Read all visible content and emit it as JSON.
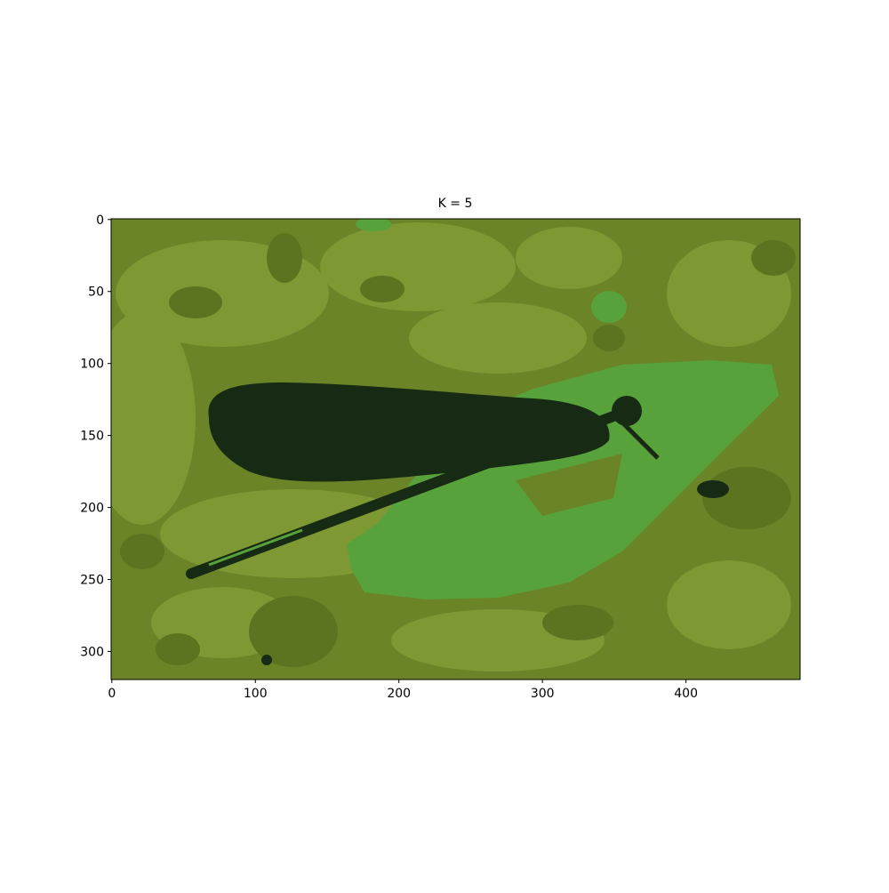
{
  "chart_data": {
    "type": "image",
    "title": "K = 5",
    "xlim": [
      -0.5,
      479.5
    ],
    "ylim": [
      319.5,
      -0.5
    ],
    "xticks": [
      0,
      100,
      200,
      300,
      400
    ],
    "yticks": [
      0,
      50,
      100,
      150,
      200,
      250,
      300
    ]
  }
}
